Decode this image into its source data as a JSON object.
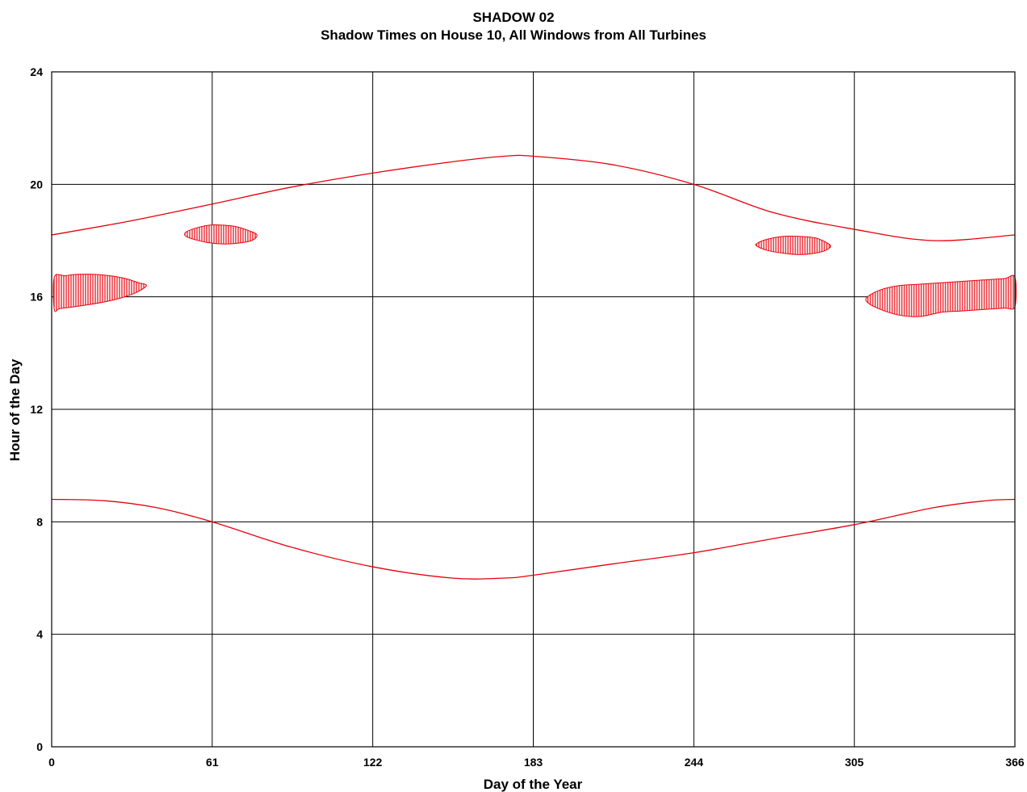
{
  "chart_data": {
    "type": "line",
    "title": "SHADOW 02",
    "subtitle": "Shadow Times on House 10, All Windows from All Turbines",
    "xlabel": "Day of the Year",
    "ylabel": "Hour of the Day",
    "xlim": [
      0,
      366
    ],
    "ylim": [
      0,
      24
    ],
    "x_ticks": [
      "0",
      "61",
      "122",
      "183",
      "244",
      "305",
      "366"
    ],
    "y_ticks": [
      "0",
      "4",
      "8",
      "12",
      "16",
      "20",
      "24"
    ],
    "grid": true,
    "legend": "none",
    "colors": {
      "series": "#e8000b",
      "grid": "#000000"
    },
    "series": [
      {
        "x": [
          0,
          30,
          61,
          91,
          122,
          152,
          172,
          183,
          213,
          244,
          274,
          305,
          335,
          366
        ],
        "y": [
          18.2,
          18.7,
          19.3,
          19.9,
          20.4,
          20.8,
          21.0,
          21.0,
          20.7,
          20.0,
          19.0,
          18.4,
          18.0,
          18.2
        ]
      },
      {
        "x": [
          0,
          20,
          40,
          61,
          91,
          122,
          152,
          172,
          183,
          213,
          244,
          274,
          305,
          335,
          355,
          366
        ],
        "y": [
          8.8,
          8.75,
          8.5,
          8.0,
          7.1,
          6.4,
          6.0,
          6.0,
          6.1,
          6.5,
          6.9,
          7.4,
          7.9,
          8.5,
          8.75,
          8.8
        ]
      }
    ],
    "shadow_regions": [
      {
        "x": [
          1,
          5,
          10,
          16,
          22,
          28,
          33,
          36,
          32,
          26,
          20,
          14,
          8,
          3,
          1
        ],
        "y_top": [
          16.7,
          16.75,
          16.8,
          16.8,
          16.75,
          16.65,
          16.5,
          16.4,
          16.15,
          15.95,
          15.82,
          15.72,
          15.64,
          15.58,
          15.55
        ]
      },
      {
        "x": [
          51,
          55,
          60,
          65,
          70,
          75,
          78,
          76,
          70,
          65,
          60,
          55,
          51
        ],
        "y_top": [
          18.3,
          18.45,
          18.55,
          18.55,
          18.5,
          18.35,
          18.2,
          18.0,
          17.9,
          17.88,
          17.92,
          18.02,
          18.15
        ]
      },
      {
        "x": [
          268,
          272,
          278,
          284,
          290,
          294,
          296,
          294,
          290,
          284,
          278,
          272,
          268
        ],
        "y_top": [
          17.9,
          18.05,
          18.15,
          18.15,
          18.1,
          17.95,
          17.8,
          17.65,
          17.55,
          17.5,
          17.55,
          17.65,
          17.8
        ]
      },
      {
        "x": [
          310,
          315,
          322,
          330,
          338,
          346,
          354,
          362,
          366,
          366,
          362,
          354,
          346,
          338,
          330,
          322,
          315,
          310
        ],
        "y_top": [
          16.0,
          16.25,
          16.4,
          16.45,
          16.5,
          16.55,
          16.6,
          16.65,
          16.7,
          15.65,
          15.6,
          15.55,
          15.5,
          15.45,
          15.3,
          15.35,
          15.55,
          15.8
        ]
      }
    ]
  }
}
